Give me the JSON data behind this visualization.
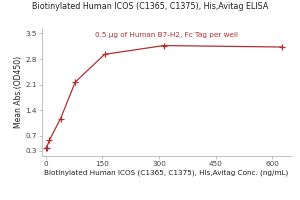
{
  "title": "Biotinylated Human ICOS (C1365, C1375), His,Avitag ELISA",
  "subtitle": "0.5 μg of Human B7-H2, Fc Tag per well",
  "xlabel": "Biotinylated Human ICOS (C1365, C1375), His,Avitag Conc. (ng/mL)",
  "ylabel": "Mean Abs.(OD450)",
  "x_data": [
    0,
    2.44,
    9.77,
    39.1,
    78.1,
    156,
    313,
    625
  ],
  "y_data": [
    0.36,
    0.38,
    0.59,
    1.17,
    2.17,
    2.93,
    3.17,
    3.13
  ],
  "xlim": [
    -10,
    650
  ],
  "ylim": [
    0.15,
    3.65
  ],
  "yticks": [
    0.3,
    0.7,
    1.4,
    2.1,
    2.8,
    3.5
  ],
  "xticks": [
    0,
    150,
    300,
    450,
    600
  ],
  "line_color": "#b03030",
  "marker_color": "#b03030",
  "title_fontsize": 5.8,
  "subtitle_fontsize": 5.2,
  "xlabel_fontsize": 5.2,
  "ylabel_fontsize": 5.5,
  "tick_fontsize": 5.2
}
